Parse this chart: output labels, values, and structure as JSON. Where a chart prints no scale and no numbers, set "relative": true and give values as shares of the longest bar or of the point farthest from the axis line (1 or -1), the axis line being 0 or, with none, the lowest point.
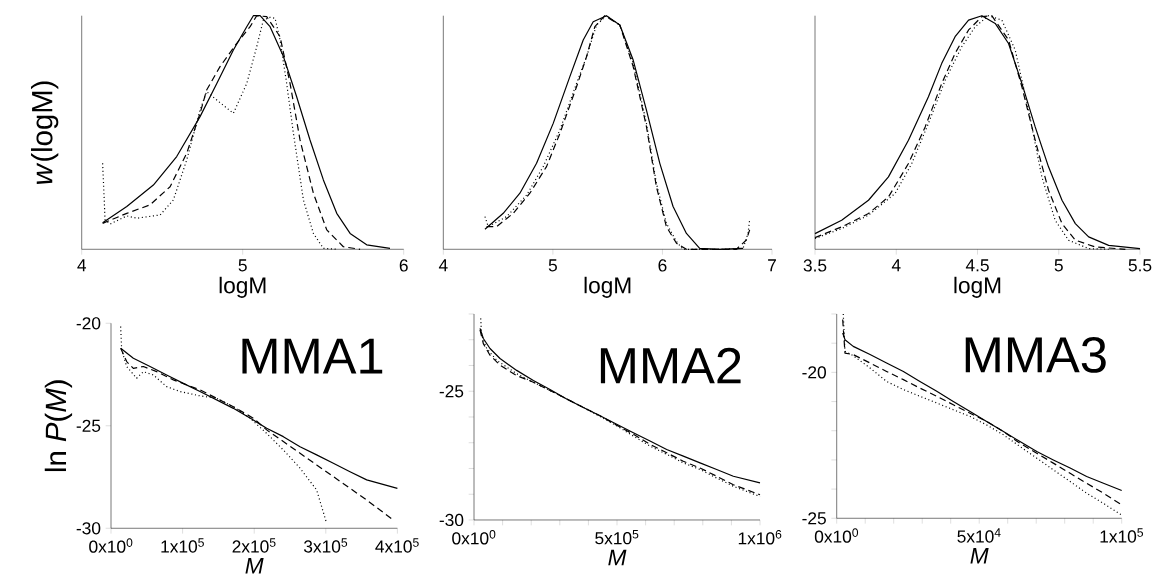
{
  "chart_data": [
    {
      "type": "line",
      "ylabel": "*w*(logM)",
      "xlabel": "logM",
      "relative": true,
      "tick_labels": "x",
      "xlim": [
        4,
        6
      ],
      "xticks": [
        4,
        5,
        6
      ],
      "series": [
        {
          "color": "#000000",
          "line_style": "solid",
          "x": [
            4.13,
            4.28,
            4.445,
            4.59,
            4.735,
            4.839,
            4.942,
            5.025,
            5.066,
            5.108,
            5.17,
            5.253,
            5.335,
            5.418,
            5.501,
            5.584,
            5.667,
            5.77,
            5.915
          ],
          "values": [
            0.114,
            0.183,
            0.275,
            0.397,
            0.568,
            0.71,
            0.853,
            0.953,
            1.0,
            1.0,
            0.953,
            0.825,
            0.653,
            0.468,
            0.297,
            0.154,
            0.068,
            0.019,
            0.004
          ]
        },
        {
          "color": "#000000",
          "line_style": "dashed",
          "x": [
            4.13,
            4.28,
            4.424,
            4.549,
            4.652,
            4.735,
            4.776,
            4.859,
            4.963,
            5.046,
            5.087,
            5.149,
            5.232,
            5.294,
            5.356,
            5.439,
            5.522,
            5.625,
            5.729
          ],
          "values": [
            0.111,
            0.154,
            0.19,
            0.268,
            0.411,
            0.582,
            0.682,
            0.782,
            0.882,
            0.953,
            1.0,
            0.996,
            0.91,
            0.71,
            0.468,
            0.24,
            0.083,
            0.011,
            0
          ]
        },
        {
          "color": "#000000",
          "line_style": "dotted",
          "x": [
            4.13,
            4.145,
            4.176,
            4.28,
            4.342,
            4.487,
            4.569,
            4.652,
            4.735,
            4.776,
            4.839,
            4.942,
            5.025,
            5.087,
            5.128,
            5.17,
            5.201,
            5.232,
            5.273,
            5.315,
            5.377,
            5.439,
            5.501,
            5.584
          ],
          "values": [
            0.368,
            0.126,
            0.108,
            0.143,
            0.133,
            0.147,
            0.211,
            0.382,
            0.596,
            0.675,
            0.639,
            0.582,
            0.71,
            0.867,
            0.981,
            0.993,
            0.989,
            0.896,
            0.71,
            0.496,
            0.211,
            0.068,
            0.004,
            0
          ]
        }
      ]
    },
    {
      "type": "line",
      "xlabel": "logM",
      "relative": true,
      "tick_labels": "x",
      "xlim": [
        4,
        7
      ],
      "xticks": [
        4,
        5,
        6,
        7
      ],
      "series": [
        {
          "color": "#000000",
          "line_style": "solid",
          "x": [
            4.38,
            4.547,
            4.699,
            4.851,
            5.003,
            5.155,
            5.277,
            5.368,
            5.489,
            5.611,
            5.733,
            5.854,
            5.976,
            6.097,
            6.219,
            6.34,
            6.523,
            6.736
          ],
          "values": [
            0.086,
            0.154,
            0.24,
            0.368,
            0.539,
            0.739,
            0.896,
            0.974,
            1.0,
            0.96,
            0.81,
            0.596,
            0.368,
            0.183,
            0.068,
            0.004,
            0,
            0.004
          ]
        },
        {
          "color": "#000000",
          "line_style": "dashed",
          "x": [
            4.395,
            4.486,
            4.638,
            4.79,
            4.942,
            5.064,
            5.216,
            5.307,
            5.383,
            5.474,
            5.611,
            5.733,
            5.854,
            5.945,
            6.036,
            6.128,
            6.219,
            6.371,
            6.675,
            6.766,
            6.796
          ],
          "values": [
            0.097,
            0.097,
            0.154,
            0.24,
            0.354,
            0.496,
            0.696,
            0.824,
            0.953,
            1.0,
            0.96,
            0.782,
            0.525,
            0.268,
            0.097,
            0.026,
            0,
            0,
            0,
            0.04,
            0.083
          ]
        },
        {
          "color": "#000000",
          "line_style": "dotted",
          "x": [
            4.38,
            4.41,
            4.578,
            4.76,
            4.912,
            5.064,
            5.216,
            5.307,
            5.398,
            5.489,
            5.611,
            5.733,
            5.854,
            5.945,
            6.036,
            6.128,
            6.188,
            6.523,
            6.736,
            6.781,
            6.796
          ],
          "values": [
            0.14,
            0.097,
            0.14,
            0.232,
            0.354,
            0.511,
            0.71,
            0.824,
            0.96,
            1.0,
            0.96,
            0.796,
            0.539,
            0.282,
            0.111,
            0.033,
            0,
            0,
            0.004,
            0.068,
            0.126
          ]
        }
      ]
    },
    {
      "type": "line",
      "xlabel": "logM",
      "relative": true,
      "tick_labels": "x",
      "xlim": [
        3.5,
        5.5
      ],
      "xticks": [
        3.5,
        4,
        4.5,
        5,
        5.5
      ],
      "series": [
        {
          "color": "#000000",
          "line_style": "solid",
          "x": [
            3.5,
            3.664,
            3.829,
            3.952,
            4.075,
            4.198,
            4.28,
            4.362,
            4.445,
            4.527,
            4.609,
            4.691,
            4.773,
            4.855,
            4.937,
            5.02,
            5.102,
            5.184,
            5.307,
            5.5
          ],
          "values": [
            0.067,
            0.124,
            0.21,
            0.31,
            0.467,
            0.653,
            0.796,
            0.91,
            0.981,
            1.0,
            0.967,
            0.881,
            0.71,
            0.524,
            0.353,
            0.21,
            0.11,
            0.053,
            0.017,
            0.003
          ]
        },
        {
          "color": "#000000",
          "line_style": "dashed",
          "x": [
            3.5,
            3.664,
            3.829,
            3.952,
            4.075,
            4.178,
            4.28,
            4.362,
            4.445,
            4.527,
            4.588,
            4.691,
            4.773,
            4.855,
            4.937,
            5.02,
            5.102,
            5.225,
            5.41
          ],
          "values": [
            0.05,
            0.096,
            0.153,
            0.224,
            0.367,
            0.524,
            0.71,
            0.839,
            0.939,
            0.996,
            1.0,
            0.896,
            0.696,
            0.467,
            0.253,
            0.11,
            0.039,
            0.01,
            0
          ]
        },
        {
          "color": "#000000",
          "line_style": "dotted",
          "x": [
            3.5,
            3.664,
            3.829,
            3.993,
            4.095,
            4.198,
            4.301,
            4.403,
            4.486,
            4.568,
            4.65,
            4.732,
            4.814,
            4.896,
            4.978,
            5.06,
            5.184,
            5.307
          ],
          "values": [
            0.046,
            0.089,
            0.146,
            0.239,
            0.367,
            0.539,
            0.724,
            0.867,
            0.953,
            1.0,
            0.981,
            0.853,
            0.596,
            0.31,
            0.124,
            0.039,
            0.003,
            0
          ]
        }
      ]
    },
    {
      "type": "line",
      "ylabel": "ln *P*(*M*)",
      "xlabel": "*M*",
      "annotations": [
        "MMA1"
      ],
      "xlim": [
        0,
        400000
      ],
      "ylim": [
        -30,
        -20
      ],
      "yticks": [
        -30,
        -25,
        -20
      ],
      "xticks": [
        {
          "value": 0,
          "label": "0x10$^{0}$"
        },
        {
          "value": 100000,
          "label": "1x10$^{5}$"
        },
        {
          "value": 200000,
          "label": "2x10$^{5}$"
        },
        {
          "value": 300000,
          "label": "3x10$^{5}$"
        },
        {
          "value": 400000,
          "label": "4x10$^{5}$"
        }
      ],
      "series": [
        {
          "color": "#000000",
          "line_style": "solid",
          "x": [
            13500,
            31200,
            54500,
            77700,
            101000,
            124300,
            147600,
            170900,
            198800,
            217400,
            240700,
            264000,
            287200,
            310500,
            333800,
            357100,
            400000
          ],
          "values": [
            -21.22,
            -21.71,
            -22.11,
            -22.52,
            -22.93,
            -23.33,
            -23.74,
            -24.15,
            -24.72,
            -25.12,
            -25.53,
            -26.02,
            -26.42,
            -26.83,
            -27.24,
            -27.64,
            -28.05
          ]
        },
        {
          "color": "#000000",
          "line_style": "dashed",
          "x": [
            13500,
            21900,
            31200,
            45200,
            63800,
            87100,
            124300,
            170900,
            198800,
            217400,
            240700,
            264000,
            287200,
            310500,
            333800,
            357100,
            392000
          ],
          "values": [
            -21.22,
            -21.87,
            -22.2,
            -22.11,
            -22.36,
            -22.76,
            -23.25,
            -24.07,
            -24.63,
            -25.2,
            -25.77,
            -26.34,
            -26.91,
            -27.48,
            -28.05,
            -28.62,
            -29.54
          ]
        },
        {
          "color": "#000000",
          "line_style": "dotted",
          "x": [
            13500,
            14900,
            21900,
            35800,
            45200,
            59100,
            77700,
            96400,
            124300,
            147600,
            170900,
            194100,
            217400,
            240700,
            264000,
            287200,
            301200
          ],
          "values": [
            -20.16,
            -21.3,
            -22.11,
            -22.68,
            -22.36,
            -22.52,
            -23.09,
            -23.33,
            -23.54,
            -23.66,
            -24.07,
            -24.63,
            -25.37,
            -26.18,
            -27.07,
            -28.13,
            -29.76
          ]
        }
      ]
    },
    {
      "type": "line",
      "xlabel": "*M*",
      "annotations": [
        "MMA2"
      ],
      "xlim": [
        0,
        1000000
      ],
      "ylim": [
        -30,
        -22
      ],
      "yticks": [
        {
          "value": -30,
          "label": "-30"
        },
        {
          "value": -29,
          "label": null
        },
        {
          "value": -28,
          "label": null
        },
        {
          "value": -27,
          "label": null
        },
        {
          "value": -26,
          "label": null
        },
        {
          "value": -25,
          "label": "-25"
        },
        {
          "value": -24,
          "label": null
        },
        {
          "value": -23,
          "label": null
        },
        {
          "value": -22,
          "label": null
        }
      ],
      "xticks": [
        {
          "value": 0,
          "label": "0x10$^{0}$"
        },
        {
          "value": 100000,
          "label": null
        },
        {
          "value": 200000,
          "label": null
        },
        {
          "value": 300000,
          "label": null
        },
        {
          "value": 400000,
          "label": null
        },
        {
          "value": 500000,
          "label": "5x10$^{5}$"
        },
        {
          "value": 600000,
          "label": null
        },
        {
          "value": 700000,
          "label": null
        },
        {
          "value": 800000,
          "label": null
        },
        {
          "value": 900000,
          "label": null
        },
        {
          "value": 1000000,
          "label": "1x10$^{6}$"
        }
      ],
      "series": [
        {
          "color": "#000000",
          "line_style": "solid",
          "x": [
            21000,
            32600,
            55900,
            90900,
            149200,
            207500,
            265700,
            324000,
            382300,
            440600,
            498800,
            557100,
            615400,
            673700,
            731900,
            790200,
            848500,
            906800,
            1000000
          ],
          "values": [
            -22.56,
            -22.95,
            -23.34,
            -23.73,
            -24.19,
            -24.58,
            -24.93,
            -25.3,
            -25.63,
            -25.95,
            -26.28,
            -26.61,
            -26.93,
            -27.26,
            -27.52,
            -27.78,
            -28.04,
            -28.3,
            -28.56
          ]
        },
        {
          "color": "#000000",
          "line_style": "dashed",
          "x": [
            21000,
            32600,
            55900,
            90900,
            149200,
            207500,
            265700,
            324000,
            382300,
            440600,
            498800,
            557100,
            615400,
            673700,
            731900,
            790200,
            848500,
            906800,
            1000000
          ],
          "values": [
            -22.62,
            -23.15,
            -23.6,
            -23.99,
            -24.39,
            -24.65,
            -24.97,
            -25.3,
            -25.63,
            -25.95,
            -26.32,
            -26.67,
            -27.06,
            -27.39,
            -27.72,
            -27.98,
            -28.3,
            -28.63,
            -29.02
          ]
        },
        {
          "color": "#000000",
          "line_style": "dotted",
          "x": [
            23300,
            26800,
            44300,
            79300,
            149200,
            207500,
            265700,
            324000,
            382300,
            440600,
            498800,
            557100,
            615400,
            673700,
            731900,
            790200,
            848500,
            906800,
            1000000
          ],
          "values": [
            -22.17,
            -22.82,
            -23.34,
            -23.8,
            -24.32,
            -24.65,
            -24.97,
            -25.3,
            -25.63,
            -25.98,
            -26.34,
            -26.74,
            -27.13,
            -27.45,
            -27.78,
            -28.04,
            -28.37,
            -28.69,
            -29.09
          ]
        }
      ]
    },
    {
      "type": "line",
      "xlabel": "*M*",
      "annotations": [
        "MMA3"
      ],
      "xlim": [
        0,
        100000
      ],
      "ylim": [
        -25,
        -18
      ],
      "yticks": [
        {
          "value": -25,
          "label": "-25"
        },
        {
          "value": -24,
          "label": null
        },
        {
          "value": -23,
          "label": null
        },
        {
          "value": -22,
          "label": null
        },
        {
          "value": -21,
          "label": null
        },
        {
          "value": -20,
          "label": "-20"
        },
        {
          "value": -19,
          "label": null
        },
        {
          "value": -18,
          "label": null
        }
      ],
      "xticks": [
        {
          "value": 0,
          "label": "0x10$^{0}$"
        },
        {
          "value": 10000,
          "label": null
        },
        {
          "value": 20000,
          "label": null
        },
        {
          "value": 30000,
          "label": null
        },
        {
          "value": 40000,
          "label": null
        },
        {
          "value": 50000,
          "label": "5x10$^{4}$"
        },
        {
          "value": 60000,
          "label": null
        },
        {
          "value": 70000,
          "label": null
        },
        {
          "value": 80000,
          "label": null
        },
        {
          "value": 90000,
          "label": null
        },
        {
          "value": 100000,
          "label": "1x10$^{5}$"
        }
      ],
      "series": [
        {
          "color": "#000000",
          "line_style": "solid",
          "x": [
            2100,
            2900,
            5800,
            11700,
            17500,
            23400,
            29200,
            35100,
            40900,
            46800,
            52600,
            58500,
            64300,
            70200,
            76000,
            81900,
            87700,
            93600,
            100000
          ],
          "values": [
            -18.65,
            -18.88,
            -19.11,
            -19.39,
            -19.68,
            -19.97,
            -20.31,
            -20.65,
            -21.0,
            -21.34,
            -21.68,
            -22.03,
            -22.37,
            -22.71,
            -23.0,
            -23.28,
            -23.57,
            -23.8,
            -24.05
          ]
        },
        {
          "color": "#000000",
          "line_style": "dashed",
          "x": [
            2100,
            2900,
            5800,
            11700,
            17500,
            23400,
            29200,
            35100,
            40900,
            46800,
            52600,
            58500,
            64300,
            70200,
            76000,
            81900,
            87700,
            93600,
            100000
          ],
          "values": [
            -18.19,
            -19.34,
            -19.39,
            -19.68,
            -19.97,
            -20.25,
            -20.54,
            -20.82,
            -21.11,
            -21.4,
            -21.68,
            -22.03,
            -22.43,
            -22.77,
            -23.11,
            -23.46,
            -23.8,
            -24.14,
            -24.54
          ]
        },
        {
          "color": "#000000",
          "line_style": "dotted",
          "x": [
            2300,
            2900,
            5800,
            11700,
            17500,
            23400,
            29200,
            35100,
            40900,
            46800,
            52600,
            58500,
            64300,
            70200,
            76000,
            81900,
            87700,
            93600,
            100000
          ],
          "values": [
            -18.0,
            -19.28,
            -19.43,
            -19.85,
            -20.31,
            -20.59,
            -20.82,
            -21.05,
            -21.28,
            -21.51,
            -21.8,
            -22.14,
            -22.54,
            -22.94,
            -23.34,
            -23.74,
            -24.14,
            -24.49,
            -24.89
          ]
        }
      ]
    }
  ]
}
